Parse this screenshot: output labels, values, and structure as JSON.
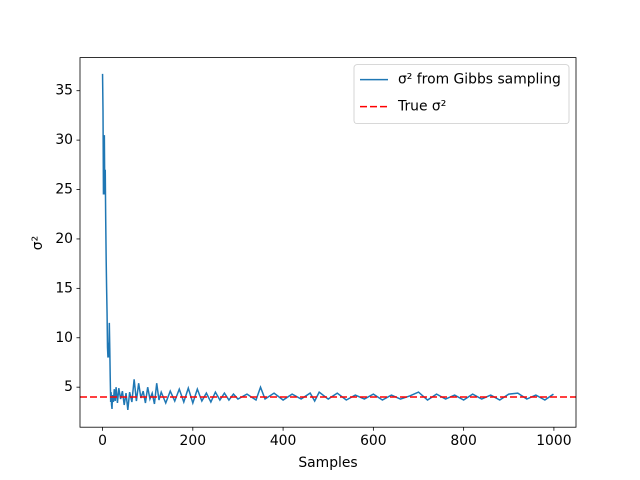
{
  "chart_data": {
    "type": "line",
    "xlabel": "Samples",
    "ylabel": "σ²",
    "x": [
      0,
      1,
      2,
      3,
      4,
      5,
      6,
      7,
      8,
      9,
      10,
      11,
      12,
      13,
      14,
      15,
      16,
      17,
      18,
      19,
      20,
      21,
      22,
      24,
      26,
      28,
      30,
      33,
      36,
      40,
      44,
      48,
      52,
      56,
      60,
      65,
      70,
      75,
      80,
      85,
      90,
      95,
      100,
      105,
      110,
      115,
      120,
      125,
      130,
      140,
      150,
      160,
      170,
      180,
      190,
      200,
      210,
      220,
      230,
      240,
      250,
      260,
      270,
      280,
      290,
      300,
      320,
      340,
      350,
      360,
      380,
      400,
      420,
      440,
      460,
      470,
      480,
      500,
      520,
      540,
      560,
      580,
      600,
      620,
      640,
      660,
      680,
      700,
      720,
      740,
      760,
      780,
      800,
      820,
      840,
      860,
      880,
      900,
      920,
      940,
      960,
      980,
      999
    ],
    "series": [
      {
        "name": "σ² from Gibbs sampling",
        "color": "#1f77b4",
        "linestyle": "solid",
        "values": [
          36.7,
          33,
          24.5,
          28,
          30.5,
          24.5,
          27,
          22,
          18,
          15,
          12.5,
          9,
          8,
          9.5,
          8,
          11.5,
          9,
          6,
          3.5,
          4.5,
          3.2,
          2.8,
          4.2,
          3.5,
          4.8,
          3.6,
          5.0,
          3.4,
          4.9,
          3.8,
          4.6,
          3.2,
          4.4,
          2.7,
          4.5,
          3.5,
          5.8,
          3.6,
          5.4,
          3.9,
          4.6,
          3.4,
          5.0,
          3.8,
          4.4,
          3.3,
          5.4,
          3.7,
          4.5,
          3.4,
          4.6,
          3.6,
          4.8,
          3.5,
          4.9,
          3.4,
          4.8,
          3.6,
          4.4,
          3.5,
          4.5,
          3.7,
          4.4,
          3.7,
          4.3,
          3.8,
          4.3,
          3.7,
          5.0,
          3.8,
          4.4,
          3.7,
          4.3,
          3.8,
          4.4,
          3.6,
          4.5,
          3.8,
          4.4,
          3.7,
          4.2,
          3.8,
          4.3,
          3.7,
          4.2,
          3.8,
          4.1,
          4.5,
          3.7,
          4.3,
          3.8,
          4.2,
          3.7,
          4.3,
          3.8,
          4.2,
          3.7,
          4.3,
          4.4,
          3.8,
          4.2,
          3.7,
          4.3
        ]
      },
      {
        "name": "True σ²",
        "color": "#ff0000",
        "linestyle": "dashed",
        "value": 4
      }
    ],
    "xlim": [
      -49.95,
      1048.95
    ],
    "xticks": [
      0,
      200,
      400,
      600,
      800,
      1000
    ],
    "ylim": [
      0.95,
      38.35
    ],
    "yticks": [
      5,
      10,
      15,
      20,
      25,
      30,
      35
    ],
    "grid": false,
    "legend": "upper right"
  }
}
